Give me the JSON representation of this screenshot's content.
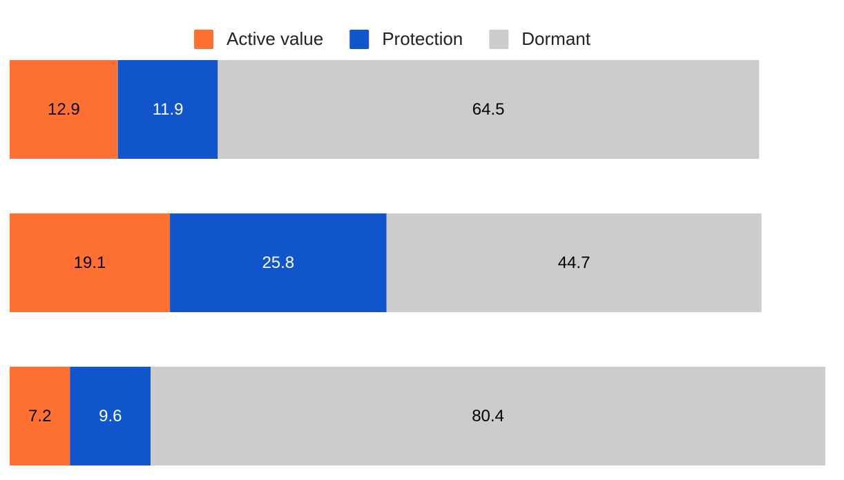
{
  "chart_data": {
    "type": "stacked-barh",
    "categories": [
      null,
      null,
      null
    ],
    "series": [
      {
        "name": "Active value",
        "color": "#ff7033",
        "text_color": "#000000",
        "values": [
          12.9,
          19.1,
          7.2
        ]
      },
      {
        "name": "Protection",
        "color": "#1155cc",
        "text_color": "#ffffff",
        "values": [
          11.9,
          25.8,
          9.6
        ]
      },
      {
        "name": "Dormant",
        "color": "#cccccc",
        "text_color": "#000000",
        "values": [
          64.5,
          44.7,
          80.4
        ]
      }
    ],
    "legend": "top"
  }
}
